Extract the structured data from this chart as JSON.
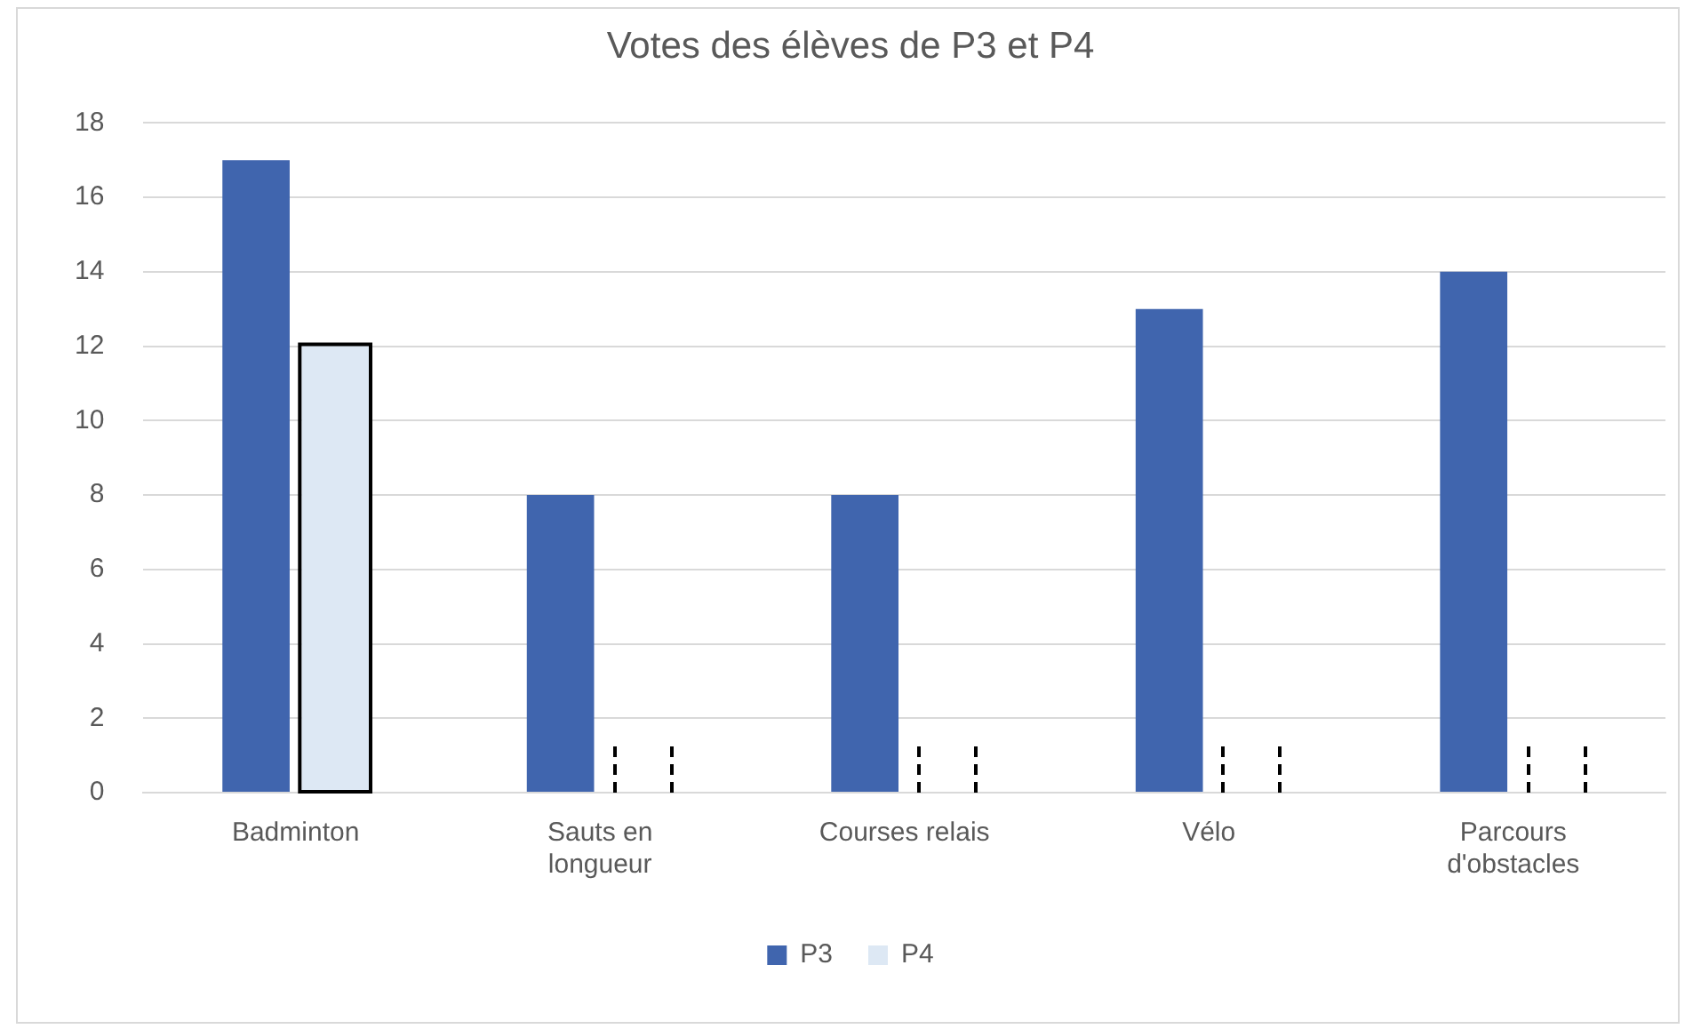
{
  "chart_data": {
    "type": "bar",
    "title": "Votes des élèves de P3 et P4",
    "categories": [
      "Badminton",
      "Sauts en longueur",
      "Courses relais",
      "Vélo",
      "Parcours d'obstacles"
    ],
    "series": [
      {
        "name": "P3",
        "color": "#4065ae",
        "values": [
          17,
          8,
          8,
          13,
          14
        ]
      },
      {
        "name": "P4",
        "color": "#dde8f4",
        "values": [
          12,
          null,
          null,
          null,
          null
        ]
      }
    ],
    "ylim": [
      0,
      18
    ],
    "yticks": [
      0,
      2,
      4,
      6,
      8,
      10,
      12,
      14,
      16,
      18
    ],
    "grid": "y",
    "legend": "bottom"
  }
}
